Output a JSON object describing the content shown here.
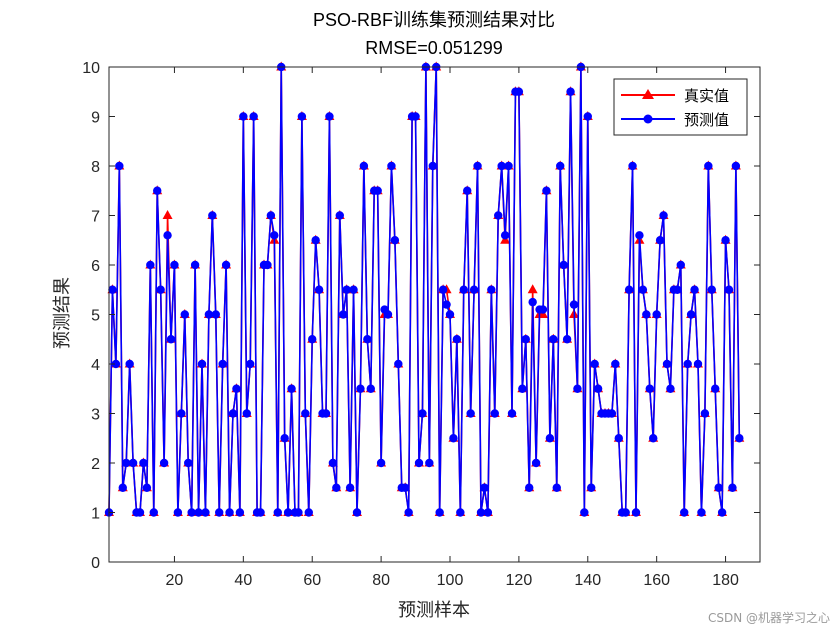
{
  "chart_data": {
    "type": "line",
    "title": "PSO-RBF训练集预测结果对比",
    "subtitle": "RMSE=0.051299",
    "xlabel": "预测样本",
    "ylabel": "预测结果",
    "xlim": [
      1,
      190
    ],
    "ylim": [
      0,
      10
    ],
    "xticks": [
      20,
      40,
      60,
      80,
      100,
      120,
      140,
      160,
      180
    ],
    "yticks": [
      0,
      1,
      2,
      3,
      4,
      5,
      6,
      7,
      8,
      9,
      10
    ],
    "grid": false,
    "legend_position": "top-right",
    "series": [
      {
        "name": "真实值",
        "color": "#ff0000",
        "marker": "triangle",
        "values": [
          1,
          5.5,
          4,
          8,
          1.5,
          2,
          4,
          2,
          1,
          1,
          2,
          1.5,
          6,
          1,
          7.5,
          5.5,
          2,
          7,
          4.5,
          6,
          1,
          3,
          5,
          2,
          1,
          6,
          1,
          4,
          1,
          5,
          7,
          5,
          1,
          4,
          6,
          1,
          3,
          3.5,
          1,
          9,
          3,
          4,
          9,
          1,
          1,
          6,
          6,
          7,
          6.5,
          1,
          10,
          2.5,
          1,
          3.5,
          1,
          1,
          9,
          3,
          1,
          4.5,
          6.5,
          5.5,
          3,
          3,
          9,
          2,
          1.5,
          7,
          5,
          5.5,
          1.5,
          5.5,
          1,
          3.5,
          8,
          4.5,
          3.5,
          7.5,
          7.5,
          2,
          5,
          5,
          8,
          6.5,
          4,
          1.5,
          1.5,
          1,
          9,
          9,
          2,
          3,
          10,
          2,
          8,
          10,
          1,
          5.5,
          5.5,
          5,
          2.5,
          4.5,
          1,
          5.5,
          7.5,
          3,
          5.5,
          8,
          1,
          1.5,
          1,
          5.5,
          3,
          7,
          8,
          6.5,
          8,
          3,
          9.5,
          9.5,
          3.5,
          4.5,
          1.5,
          5.5,
          2,
          5,
          5,
          7.5,
          2.5,
          4.5,
          1.5,
          8,
          6,
          4.5,
          9.5,
          5,
          3.5,
          10,
          1,
          9,
          1.5,
          4,
          3.5,
          3,
          3,
          3,
          3,
          4,
          2.5,
          1,
          1,
          5.5,
          8,
          1,
          6.5,
          5.5,
          5,
          3.5,
          2.5,
          5,
          6.5,
          7,
          4,
          3.5,
          5.5,
          5.5,
          6,
          1,
          4,
          5,
          5.5,
          4,
          1,
          3,
          8,
          5.5,
          3.5,
          1.5,
          1,
          6.5,
          5.5,
          1.5,
          8,
          2.5
        ]
      },
      {
        "name": "预测值",
        "color": "#0000ff",
        "marker": "circle",
        "values": [
          1,
          5.5,
          4,
          8,
          1.5,
          2,
          4,
          2,
          1,
          1,
          2,
          1.5,
          6,
          1,
          7.5,
          5.5,
          2,
          6.6,
          4.5,
          6,
          1,
          3,
          5,
          2,
          1,
          6,
          1,
          4,
          1,
          5,
          7,
          5,
          1,
          4,
          6,
          1,
          3,
          3.5,
          1,
          9,
          3,
          4,
          9,
          1,
          1,
          6,
          6,
          7,
          6.6,
          1,
          10,
          2.5,
          1,
          3.5,
          1,
          1,
          9,
          3,
          1,
          4.5,
          6.5,
          5.5,
          3,
          3,
          9,
          2,
          1.5,
          7,
          5,
          5.5,
          1.5,
          5.5,
          1,
          3.5,
          8,
          4.5,
          3.5,
          7.5,
          7.5,
          2,
          5.1,
          5,
          8,
          6.5,
          4,
          1.5,
          1.5,
          1,
          9,
          9,
          2,
          3,
          10,
          2,
          8,
          10,
          1,
          5.5,
          5.2,
          5,
          2.5,
          4.5,
          1,
          5.5,
          7.5,
          3,
          5.5,
          8,
          1,
          1.5,
          1,
          5.5,
          3,
          7,
          8,
          6.6,
          8,
          3,
          9.5,
          9.5,
          3.5,
          4.5,
          1.5,
          5.25,
          2,
          5.1,
          5.1,
          7.5,
          2.5,
          4.5,
          1.5,
          8,
          6,
          4.5,
          9.5,
          5.2,
          3.5,
          10,
          1,
          9,
          1.5,
          4,
          3.5,
          3,
          3,
          3,
          3,
          4,
          2.5,
          1,
          1,
          5.5,
          8,
          1,
          6.6,
          5.5,
          5,
          3.5,
          2.5,
          5,
          6.5,
          7,
          4,
          3.5,
          5.5,
          5.5,
          6,
          1,
          4,
          5,
          5.5,
          4,
          1,
          3,
          8,
          5.5,
          3.5,
          1.5,
          1,
          6.5,
          5.5,
          1.5,
          8,
          2.5
        ]
      }
    ]
  },
  "watermark": "CSDN @机器学习之心"
}
